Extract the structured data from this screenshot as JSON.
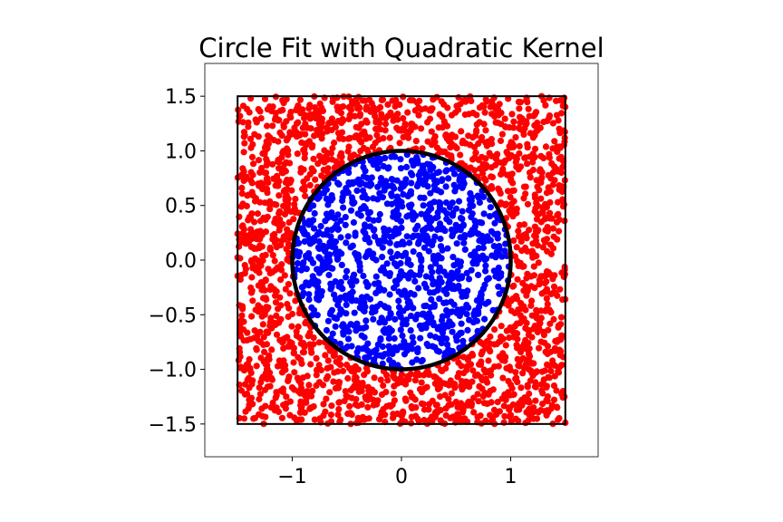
{
  "chart_data": {
    "type": "scatter",
    "title": "Circle Fit with Quadratic Kernel",
    "xlabel": "",
    "ylabel": "",
    "xlim": [
      -1.8,
      1.8
    ],
    "ylim": [
      -1.8,
      1.8
    ],
    "x_ticks": [
      -1,
      0,
      1
    ],
    "x_tick_labels": [
      "−1",
      "0",
      "1"
    ],
    "y_ticks": [
      1.5,
      1.0,
      0.5,
      0.0,
      -0.5,
      -1.0,
      -1.5
    ],
    "y_tick_labels": [
      "1.5",
      "1.0",
      "0.5",
      "0.0",
      "−0.5",
      "−1.0",
      "−1.5"
    ],
    "grid": false,
    "legend": "none",
    "sampling_square": {
      "xmin": -1.5,
      "xmax": 1.5,
      "ymin": -1.5,
      "ymax": 1.5
    },
    "decision_circle": {
      "cx": 0,
      "cy": 0,
      "r": 1
    },
    "series": [
      {
        "color": "#0000ff",
        "region": "inside circle",
        "approx_count": 1000
      },
      {
        "color": "#ff0000",
        "region": "outside circle",
        "approx_count": 2000
      }
    ]
  }
}
